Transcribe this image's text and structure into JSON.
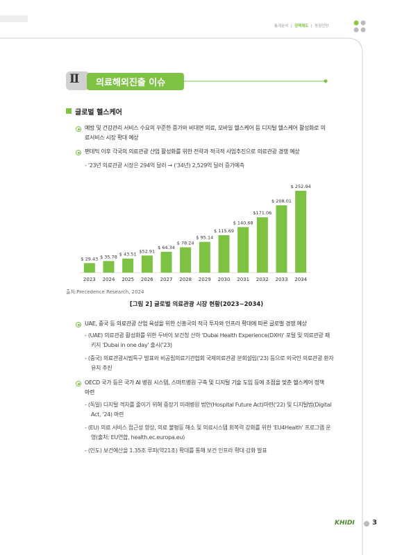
{
  "nav": [
    "통계분석",
    "정책제도",
    "동향전망"
  ],
  "section": {
    "number": "Ⅱ",
    "title": "의료해외진출 이슈"
  },
  "heading": "글로벌 헬스케어",
  "bullets": [
    {
      "text": "예방 및 건강관리 서비스 수요의 꾸준한 증가와 비대면 의료, 모바일 헬스케어 등 디지털 헬스케어 활성화로 의료서비스 시장 확대 예상"
    },
    {
      "text": "팬데믹 이후 각국의 의료관광 산업 활성화를 위한 전략과 적극적 사업추진으로 의료관광 경쟁 예상",
      "subs": [
        "- '23년 의료관광 시장은 294억 달러 → ('34년) 2,529억 달러 증가예측"
      ]
    },
    {
      "text": "UAE, 중국 등 의료관광 산업 육성을 위한 신흥국의 적극 투자와 인프라 확대에 따른 글로벌 경쟁 예상",
      "subs": [
        "- (UAE) 의료관광 활성화를 위한 두바이 보건청 산하 'Dubai Health Experience(DXH)' 포털 및 의료관광 패키지 'Dubai in one day' 출시('23)",
        "- (중국) 의료관광시범특구 발표와 비공립의료기관협회 국제의료관광 분회설립('23) 등으로 외국인 의료관광 환자 유치 추진"
      ]
    },
    {
      "text": "OECD 국가 등은 국가 AI 병원 시스템, 스마트병원 구축 및 디지털 기술 도입 등에 초점을 맞춘 헬스케어 정책 마련",
      "subs": [
        "- (독일) 디지털 격차를 줄이기 위해 중장기 미래병원 법안(Hospital Future Act)마련('22) 및 디지털법(Digital Act, '24) 마련",
        "- (EU) 의료 서비스 접근성 향상, 의료 불평등 해소 및 의료시스템 회복력 강화를 위한 'EU4Health' 프로그램 운영(출처: EU연합, health.ec.europa.eu)",
        "- (인도) 보건예산을 1.35조 루피(약21조) 확대를 통해 보건 인프라 확대 강화 발표"
      ]
    }
  ],
  "chart_data": {
    "type": "bar",
    "title": "[그림 2] 글로벌 의료관광 시장 현황(2023~2034)",
    "source": "출처:Precedence Research, 2024",
    "categories": [
      "2023",
      "2024",
      "2025",
      "2026",
      "2027",
      "2028",
      "2029",
      "2030",
      "2031",
      "2032",
      "2033",
      "2034"
    ],
    "values": [
      29.43,
      35.78,
      43.51,
      52.91,
      64.34,
      78.24,
      95.14,
      115.69,
      140.68,
      171.06,
      208.01,
      252.94
    ],
    "value_labels": [
      "$ 29.43",
      "$ 35.78",
      "$ 43.51",
      "$52.91",
      "$ 64.34",
      "$ 78.24",
      "$ 95.14",
      "$ 115.69",
      "$ 140.68",
      "$171.06",
      "$ 208.01",
      "$ 252.94"
    ],
    "color": "#7dc242"
  },
  "footer": {
    "logo": "KHIDI",
    "page": 3
  }
}
